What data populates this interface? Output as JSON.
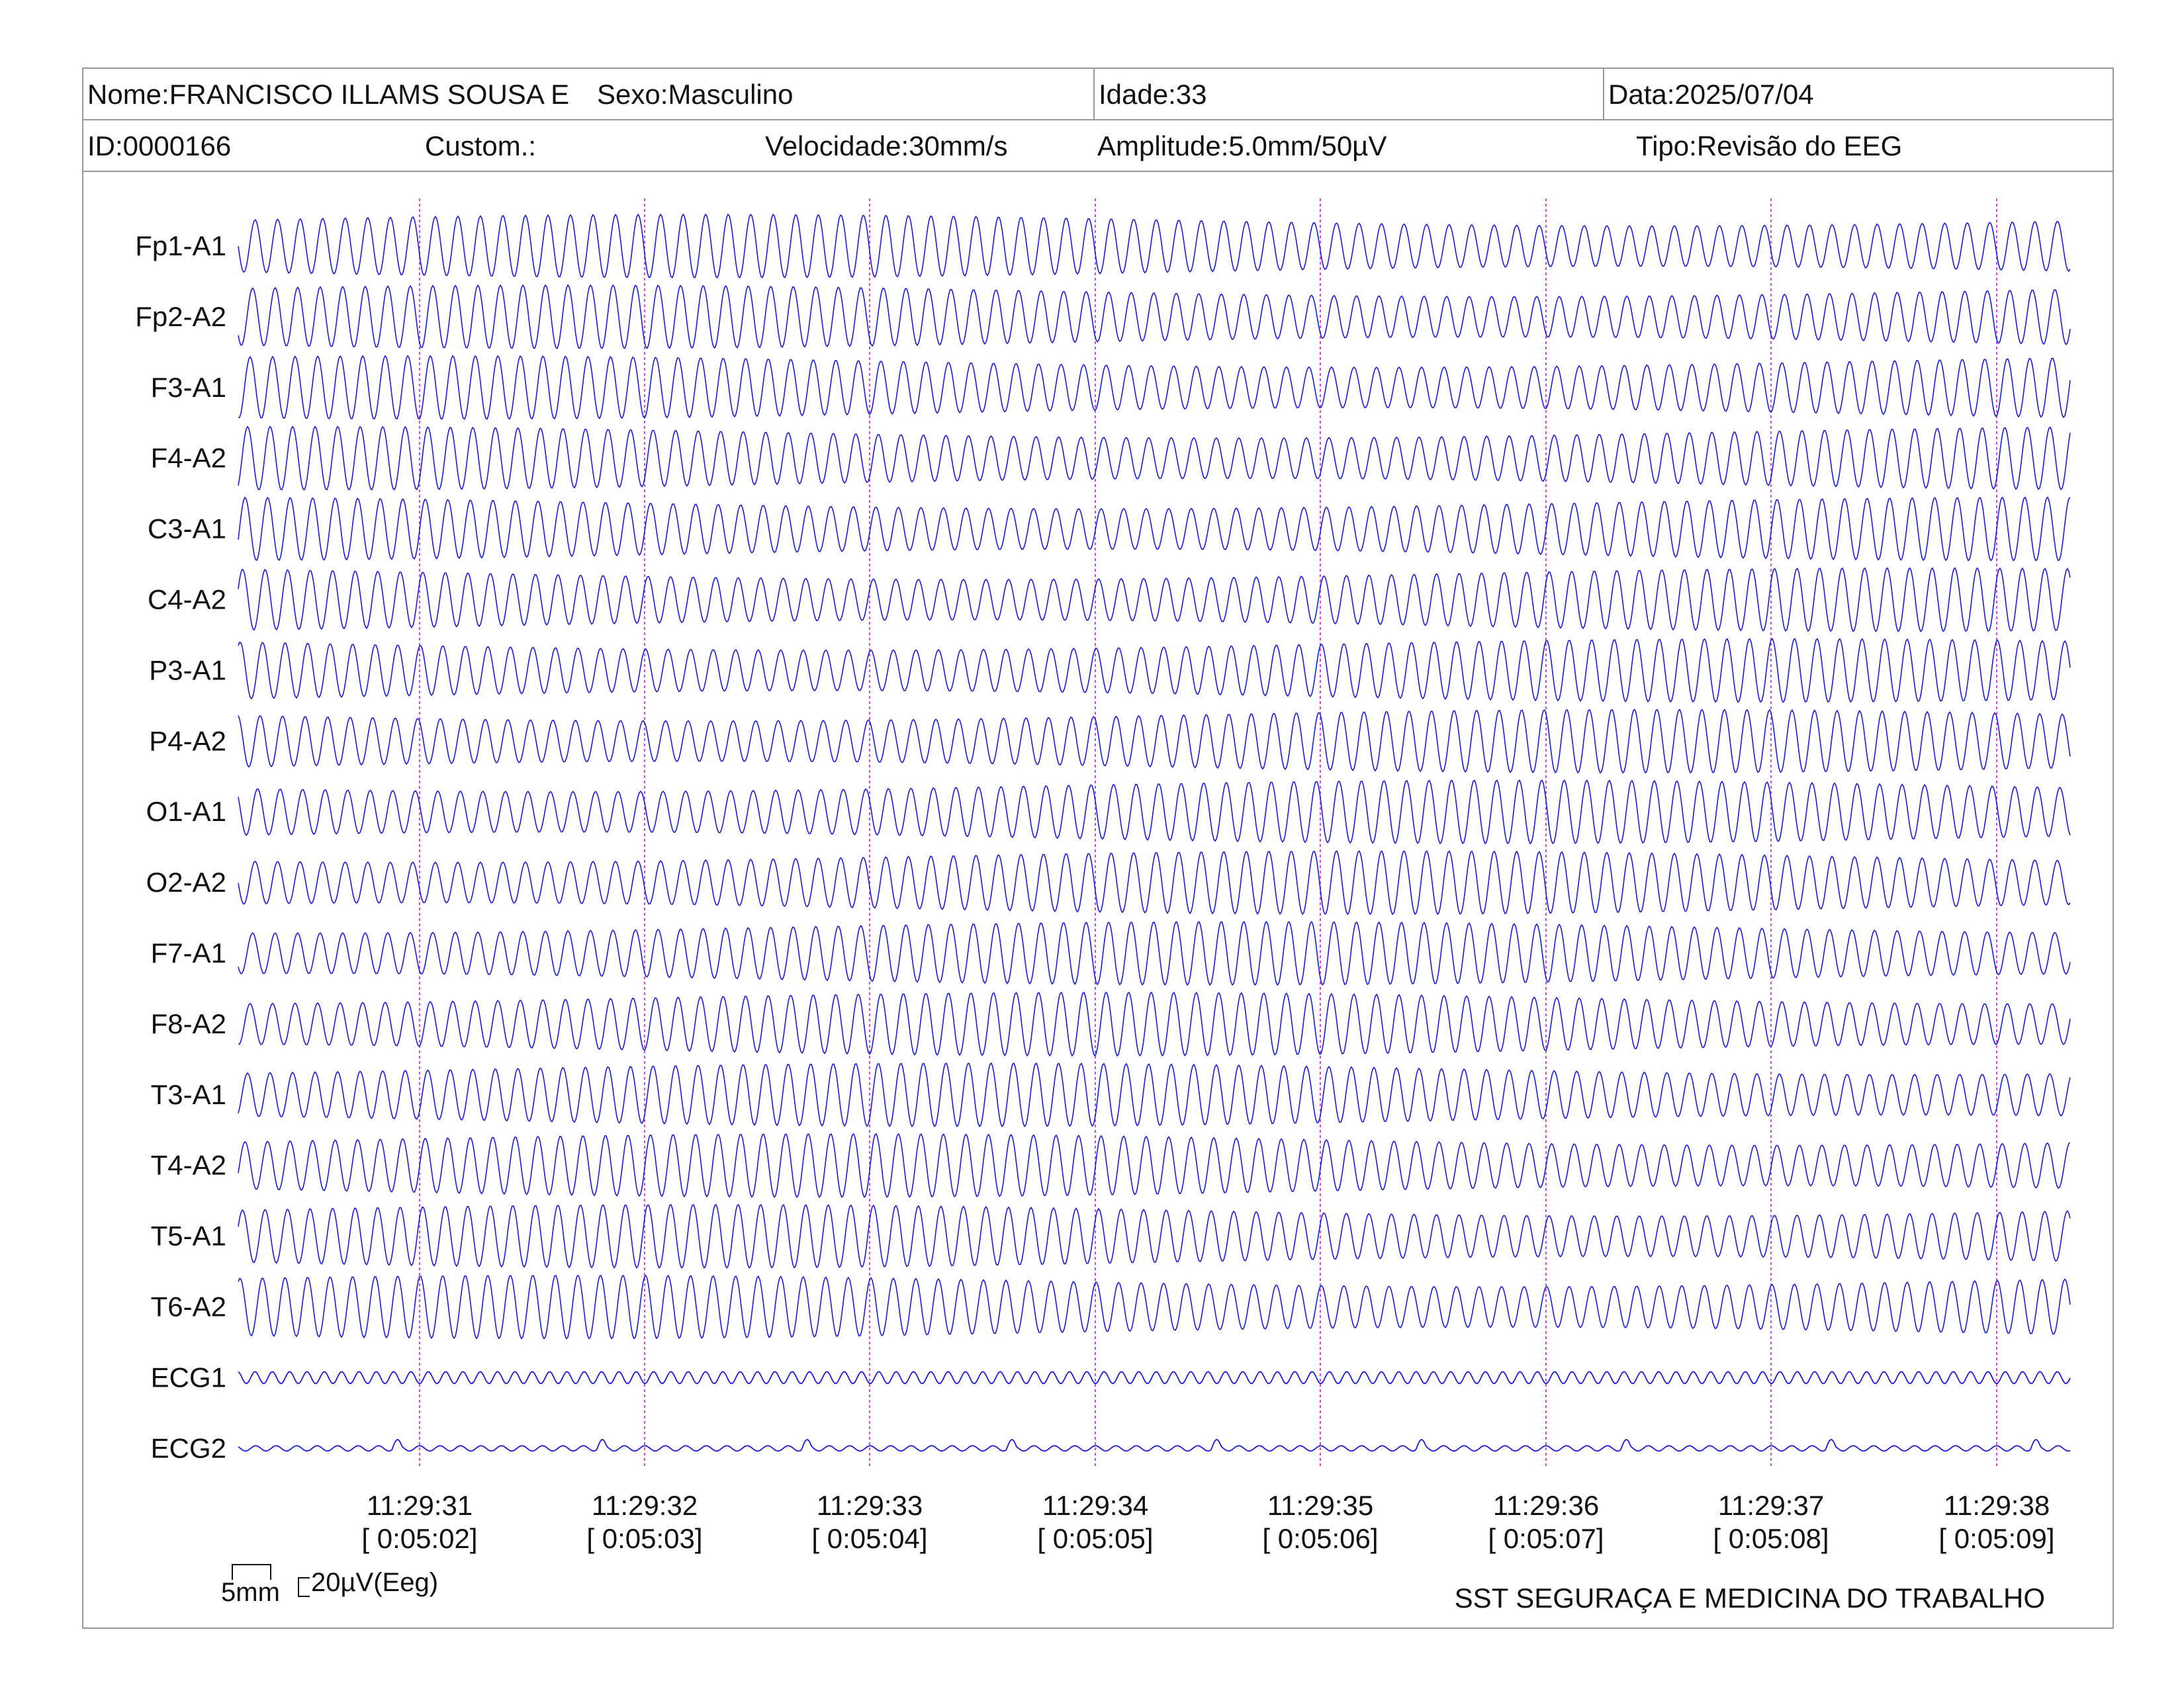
{
  "header": {
    "nome": "Nome:FRANCISCO ILLAMS SOUSA E",
    "sexo": "Sexo:Masculino",
    "idade": "Idade:33",
    "data": "Data:2025/07/04",
    "id": "ID:0000166",
    "custom": "Custom.:",
    "velocidade": "Velocidade:30mm/s",
    "amplitude": "Amplitude:5.0mm/50µV",
    "tipo": "Tipo:Revisão do EEG"
  },
  "chart_data": {
    "type": "line",
    "title": "",
    "xlabel": "",
    "ylabel": "",
    "channels": [
      "Fp1-A1",
      "Fp2-A2",
      "F3-A1",
      "F4-A2",
      "C3-A1",
      "C4-A2",
      "P3-A1",
      "P4-A2",
      "O1-A1",
      "O2-A2",
      "F7-A1",
      "F8-A2",
      "T3-A1",
      "T4-A2",
      "T5-A1",
      "T6-A2",
      "ECG1",
      "ECG2"
    ],
    "time_ticks": [
      {
        "clock": "11:29:31",
        "elapsed": "[ 0:05:02]"
      },
      {
        "clock": "11:29:32",
        "elapsed": "[ 0:05:03]"
      },
      {
        "clock": "11:29:33",
        "elapsed": "[ 0:05:04]"
      },
      {
        "clock": "11:29:34",
        "elapsed": "[ 0:05:05]"
      },
      {
        "clock": "11:29:35",
        "elapsed": "[ 0:05:06]"
      },
      {
        "clock": "11:29:36",
        "elapsed": "[ 0:05:07]"
      },
      {
        "clock": "11:29:37",
        "elapsed": "[ 0:05:08]"
      },
      {
        "clock": "11:29:38",
        "elapsed": "[ 0:05:09]"
      }
    ],
    "eeg_frequency_hz": 10,
    "grid": false,
    "trace_color": "#1a1adb",
    "marker_color": "#e040e0"
  },
  "calibration": {
    "time_scale": "5mm",
    "amplitude_scale": "20µV(Eeg)"
  },
  "footer": {
    "company": "SST SEGURAÇA E MEDICINA DO TRABALHO"
  }
}
